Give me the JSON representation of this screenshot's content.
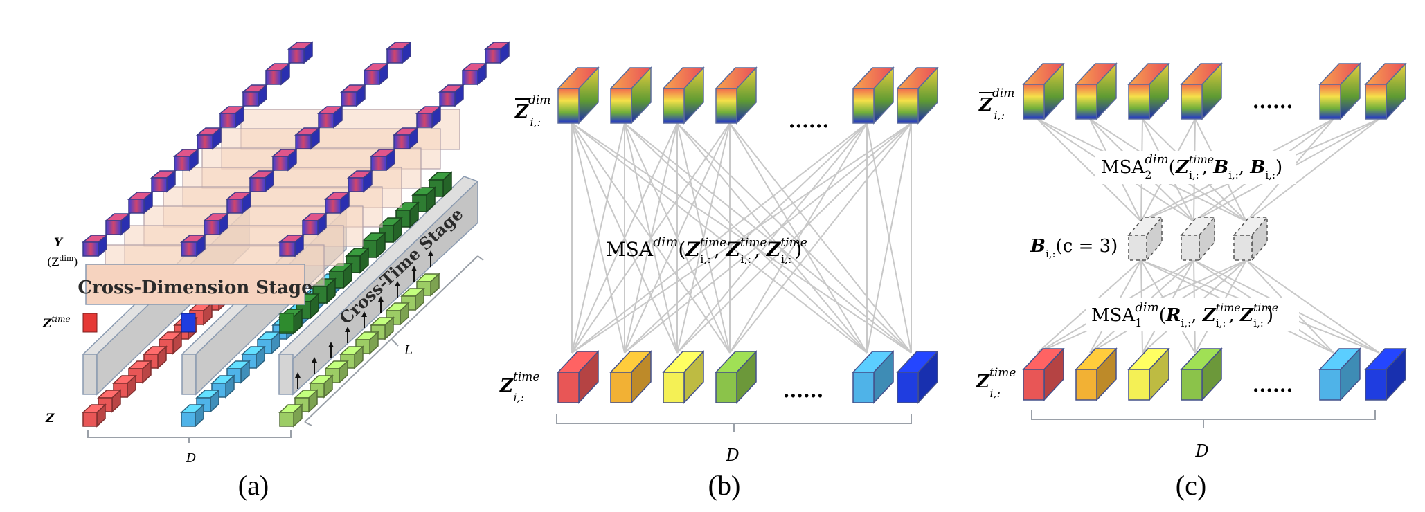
{
  "panel_a": {
    "label_y": "Y",
    "label_zdim": "(Z",
    "label_zdim_sup": "dim",
    "label_zdim_close": ")",
    "label_ztime": "Z",
    "label_ztime_sup": "time",
    "label_z": "Z",
    "stage_dim": "Cross-Dimension Stage",
    "stage_time": "Cross-Time Stage",
    "label_L": "L",
    "label_D": "D",
    "caption": "(a)"
  },
  "panel_b": {
    "top_label": "Z",
    "top_sup": "dim",
    "top_sub": "i,:",
    "bottom_label": "Z",
    "bottom_sup": "time",
    "bottom_sub": "i,:",
    "dots_top": "......",
    "dots_bottom": "......",
    "msa": "MSA",
    "msa_sup": "dim",
    "msa_arg_z": "Z",
    "msa_arg_sup": "time",
    "msa_arg_sub": "i,:",
    "label_D": "D",
    "caption": "(b)"
  },
  "panel_c": {
    "top_label": "Z",
    "top_sup": "dim",
    "top_sub": "i,:",
    "bottom_label": "Z",
    "bottom_sup": "time",
    "bottom_sub": "i,:",
    "dots_top": "......",
    "dots_bottom": "......",
    "msa2": "MSA",
    "msa2_sub": "2",
    "msa2_sup": "dim",
    "msa1": "MSA",
    "msa1_sub": "1",
    "msa1_sup": "dim",
    "arg_z": "Z",
    "arg_z_sup": "time",
    "arg_sub": "i,:",
    "arg_b": "B",
    "arg_r": "R",
    "b_label": "B",
    "b_sub": "i,:",
    "b_cond": "(c = 3)",
    "label_D": "D",
    "caption": "(c)"
  },
  "colors": {
    "red": "#e85656",
    "orange": "#f2b134",
    "yellow": "#f4f055",
    "green": "#8bc34a",
    "lightblue": "#4fb3e8",
    "blue": "#1f3de0",
    "darkgreen": "#2e7d32",
    "stage_fill": "#f6d5c0",
    "gray_bar": "#cfcfcf",
    "line": "#c8c8c8"
  }
}
